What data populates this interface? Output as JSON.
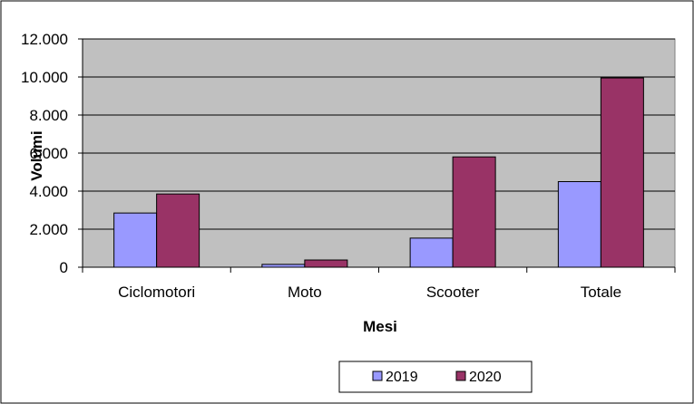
{
  "chart_data": {
    "type": "bar",
    "title": "",
    "xlabel": "Mesi",
    "ylabel": "Volumi",
    "categories": [
      "Ciclomotori",
      "Moto",
      "Scooter",
      "Totale"
    ],
    "series": [
      {
        "name": "2019",
        "values": [
          2850,
          150,
          1530,
          4500
        ],
        "color": "#9999FF"
      },
      {
        "name": "2020",
        "values": [
          3850,
          380,
          5800,
          9950
        ],
        "color": "#993366"
      }
    ],
    "ylim": [
      0,
      12000
    ],
    "yticks": [
      0,
      2000,
      4000,
      6000,
      8000,
      10000,
      12000
    ],
    "ytick_labels": [
      "0",
      "2.000",
      "4.000",
      "6.000",
      "8.000",
      "10.000",
      "12.000"
    ],
    "grid": true,
    "plot_background": "#C0C0C0",
    "legend_position": "bottom-right"
  }
}
